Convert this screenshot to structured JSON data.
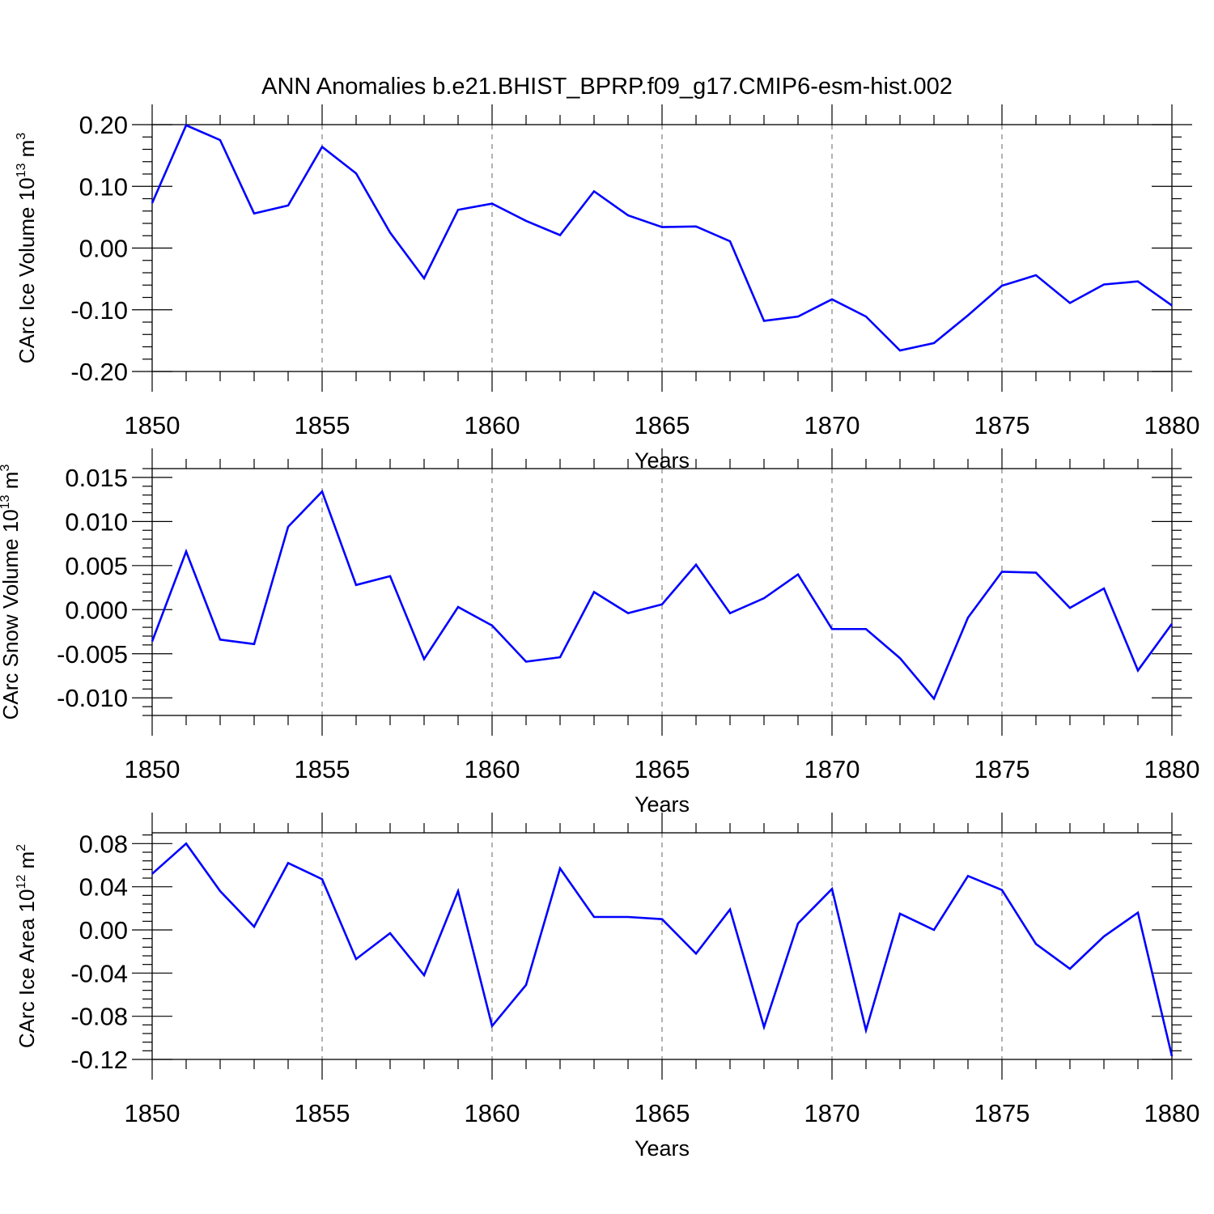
{
  "title": "ANN Anomalies b.e21.BHIST_BPRP.f09_g17.CMIP6-esm-hist.002",
  "line_color": "#0000ff",
  "chart_data": [
    {
      "type": "line",
      "ylabel_text": "CArc Ice Volume 10",
      "ylabel_exp": "13",
      "ylabel_unit": "m",
      "ylabel_unit_exp": "3",
      "xlabel": "Years",
      "xlim": [
        1850,
        1880
      ],
      "ylim": [
        -0.2,
        0.2
      ],
      "yticks": [
        -0.2,
        -0.1,
        0.0,
        0.1,
        0.2
      ],
      "ytick_labels": [
        "-0.20",
        "-0.10",
        "0.00",
        "0.10",
        "0.20"
      ],
      "xticks": [
        1850,
        1855,
        1860,
        1865,
        1870,
        1875,
        1880
      ],
      "xtick_labels": [
        "1850",
        "1855",
        "1860",
        "1865",
        "1870",
        "1875",
        "1880"
      ],
      "grid": "vertical dashed at major x ticks",
      "x": [
        1850,
        1851,
        1852,
        1853,
        1854,
        1855,
        1856,
        1857,
        1858,
        1859,
        1860,
        1861,
        1862,
        1863,
        1864,
        1865,
        1866,
        1867,
        1868,
        1869,
        1870,
        1871,
        1872,
        1873,
        1874,
        1875,
        1876,
        1877,
        1878,
        1879,
        1880
      ],
      "series": [
        {
          "values": [
            0.073,
            0.199,
            0.175,
            0.056,
            0.069,
            0.164,
            0.121,
            0.025,
            -0.049,
            0.062,
            0.072,
            0.044,
            0.021,
            0.092,
            0.053,
            0.034,
            0.035,
            0.011,
            -0.118,
            -0.111,
            -0.083,
            -0.111,
            -0.166,
            -0.154,
            -0.109,
            -0.061,
            -0.044,
            -0.089,
            -0.059,
            -0.054,
            -0.093
          ]
        }
      ]
    },
    {
      "type": "line",
      "ylabel_text": "CArc Snow Volume 10",
      "ylabel_exp": "13",
      "ylabel_unit": "m",
      "ylabel_unit_exp": "3",
      "xlabel": "Years",
      "xlim": [
        1850,
        1880
      ],
      "ylim": [
        -0.012,
        0.016
      ],
      "yticks": [
        -0.01,
        -0.005,
        0.0,
        0.005,
        0.01,
        0.015
      ],
      "ytick_labels": [
        "-0.010",
        "-0.005",
        "0.000",
        "0.005",
        "0.010",
        "0.015"
      ],
      "xticks": [
        1850,
        1855,
        1860,
        1865,
        1870,
        1875,
        1880
      ],
      "xtick_labels": [
        "1850",
        "1855",
        "1860",
        "1865",
        "1870",
        "1875",
        "1880"
      ],
      "grid": "vertical dashed at major x ticks",
      "x": [
        1850,
        1851,
        1852,
        1853,
        1854,
        1855,
        1856,
        1857,
        1858,
        1859,
        1860,
        1861,
        1862,
        1863,
        1864,
        1865,
        1866,
        1867,
        1868,
        1869,
        1870,
        1871,
        1872,
        1873,
        1874,
        1875,
        1876,
        1877,
        1878,
        1879,
        1880
      ],
      "series": [
        {
          "values": [
            -0.0036,
            0.0066,
            -0.0034,
            -0.0039,
            0.0094,
            0.0134,
            0.0028,
            0.0038,
            -0.0056,
            0.0003,
            -0.0018,
            -0.0059,
            -0.0054,
            0.002,
            -0.0004,
            0.0006,
            0.0051,
            -0.0004,
            0.0013,
            0.004,
            -0.0022,
            -0.0022,
            -0.0055,
            -0.0101,
            -0.0009,
            0.0043,
            0.0042,
            0.0002,
            0.0024,
            -0.0069,
            -0.0016
          ]
        }
      ]
    },
    {
      "type": "line",
      "ylabel_text": "CArc Ice Area 10",
      "ylabel_exp": "12",
      "ylabel_unit": "m",
      "ylabel_unit_exp": "2",
      "xlabel": "Years",
      "xlim": [
        1850,
        1880
      ],
      "ylim": [
        -0.12,
        0.09
      ],
      "yticks": [
        -0.12,
        -0.08,
        -0.04,
        0.0,
        0.04,
        0.08
      ],
      "ytick_labels": [
        "-0.12",
        "-0.08",
        "-0.04",
        "0.00",
        "0.04",
        "0.08"
      ],
      "xticks": [
        1850,
        1855,
        1860,
        1865,
        1870,
        1875,
        1880
      ],
      "xtick_labels": [
        "1850",
        "1855",
        "1860",
        "1865",
        "1870",
        "1875",
        "1880"
      ],
      "grid": "vertical dashed at major x ticks",
      "x": [
        1850,
        1851,
        1852,
        1853,
        1854,
        1855,
        1856,
        1857,
        1858,
        1859,
        1860,
        1861,
        1862,
        1863,
        1864,
        1865,
        1866,
        1867,
        1868,
        1869,
        1870,
        1871,
        1872,
        1873,
        1874,
        1875,
        1876,
        1877,
        1878,
        1879,
        1880
      ],
      "series": [
        {
          "values": [
            0.052,
            0.08,
            0.036,
            0.003,
            0.062,
            0.047,
            -0.027,
            -0.003,
            -0.042,
            0.036,
            -0.089,
            -0.051,
            0.057,
            0.012,
            0.012,
            0.01,
            -0.022,
            0.019,
            -0.09,
            0.006,
            0.038,
            -0.093,
            0.015,
            0.0,
            0.05,
            0.037,
            -0.013,
            -0.036,
            -0.006,
            0.016,
            -0.117
          ]
        }
      ]
    }
  ]
}
